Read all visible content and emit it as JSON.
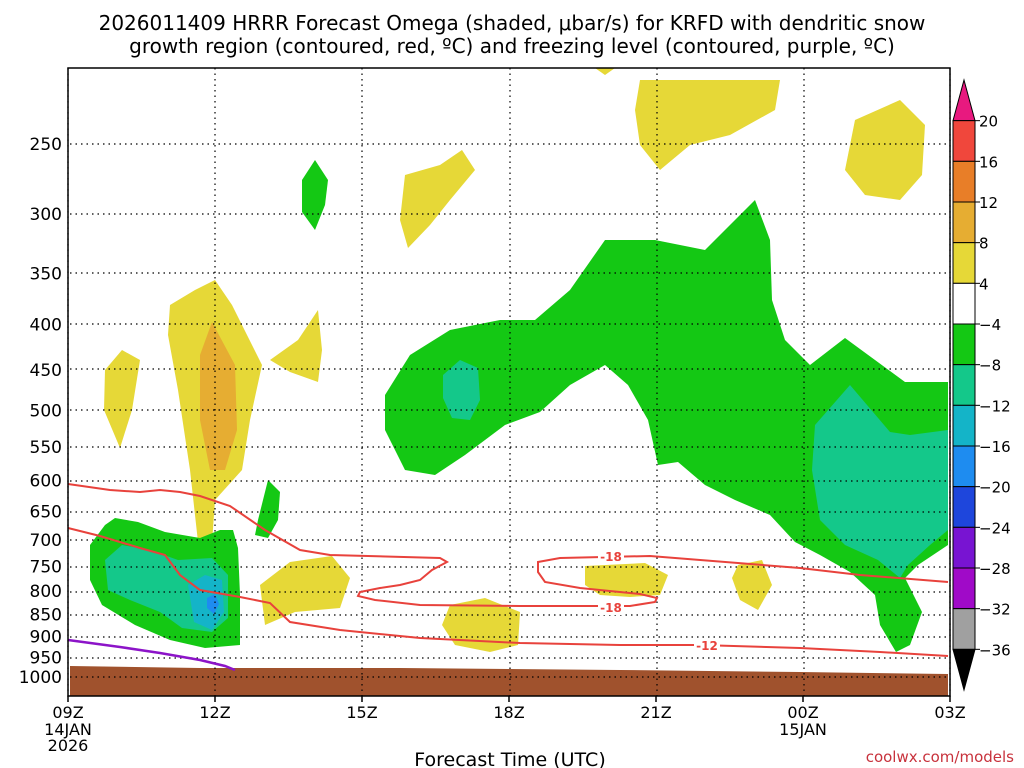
{
  "chart_data": {
    "type": "heatmap",
    "title_lines": [
      "2026011409 HRRR Forecast Omega (shaded, μbar/s) for KRFD with dendritic snow",
      "growth region (contoured, red, ºC) and freezing level (contoured, purple, ºC)"
    ],
    "xlabel": "Forecast Time (UTC)",
    "ylabel": "",
    "x_ticks": [
      {
        "label": "09Z",
        "sub": [
          "14JAN",
          "2026"
        ],
        "hour": 0
      },
      {
        "label": "12Z",
        "sub": [],
        "hour": 3
      },
      {
        "label": "15Z",
        "sub": [],
        "hour": 6
      },
      {
        "label": "18Z",
        "sub": [],
        "hour": 9
      },
      {
        "label": "21Z",
        "sub": [],
        "hour": 12
      },
      {
        "label": "00Z",
        "sub": [
          "15JAN"
        ],
        "hour": 15
      },
      {
        "label": "03Z",
        "sub": [],
        "hour": 18
      }
    ],
    "xlim_hours": [
      0,
      18
    ],
    "y_levels": [
      250,
      300,
      350,
      400,
      450,
      500,
      550,
      600,
      650,
      700,
      750,
      800,
      850,
      900,
      950,
      1000
    ],
    "ylim_hpa": [
      200,
      1000
    ],
    "colorbar": {
      "labels": [
        "20",
        "16",
        "12",
        "8",
        "4",
        "−4",
        "−8",
        "−12",
        "−16",
        "−20",
        "−24",
        "−28",
        "−32",
        "−36"
      ],
      "colors": [
        "#e8197f",
        "#f0473c",
        "#e87e28",
        "#e6ad32",
        "#e6d837",
        "#ffffff",
        "#14c814",
        "#14c88a",
        "#14b4c8",
        "#1e8cf0",
        "#1e46dc",
        "#7814d2",
        "#a00ac8",
        "#a0a0a0",
        "#000000"
      ]
    },
    "contour_labels": [
      "-18",
      "-18",
      "-12"
    ],
    "series": [
      {
        "name": "dgz_-12",
        "color": "#e8423c"
      },
      {
        "name": "dgz_-18",
        "color": "#e8423c"
      },
      {
        "name": "freezing_level",
        "color": "#8c14c8"
      }
    ],
    "credit": "coolwx.com/models"
  }
}
